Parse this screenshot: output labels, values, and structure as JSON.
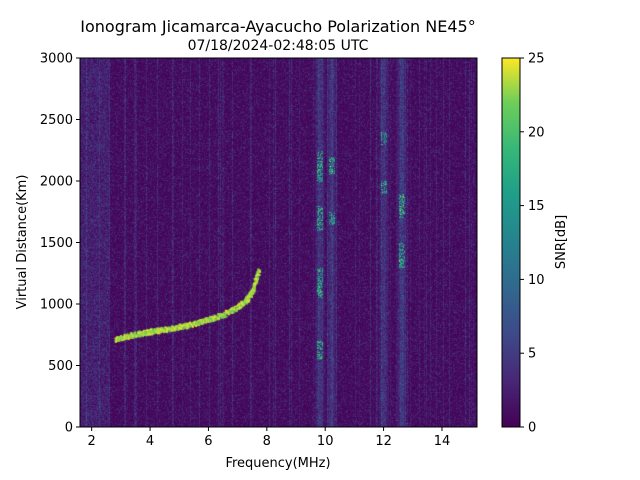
{
  "chart_data": {
    "type": "heatmap",
    "title": "Ionogram Jicamarca-Ayacucho Polarization NE45°",
    "subtitle": "07/18/2024-02:48:05 UTC",
    "xlabel": "Frequency(MHz)",
    "ylabel": "Virtual Distance(Km)",
    "xlim": [
      1.6,
      15.2
    ],
    "ylim": [
      0,
      3000
    ],
    "xticks": [
      2,
      4,
      6,
      8,
      10,
      12,
      14
    ],
    "yticks": [
      0,
      500,
      1000,
      1500,
      2000,
      2500,
      3000
    ],
    "grid": false,
    "colormap": "viridis",
    "colorbar": {
      "label": "SNR[dB]",
      "range": [
        0,
        25
      ],
      "ticks": [
        0,
        5,
        10,
        15,
        20,
        25
      ]
    },
    "trace": {
      "description_note": "",
      "frequency_mhz": [
        2.8,
        3.2,
        3.6,
        4.0,
        4.5,
        5.0,
        5.5,
        6.0,
        6.5,
        7.0,
        7.3,
        7.5,
        7.7
      ],
      "virtual_distance_km": [
        720,
        745,
        765,
        780,
        800,
        820,
        845,
        880,
        920,
        985,
        1040,
        1120,
        1280
      ]
    },
    "vertical_bands": [
      {
        "frequency_mhz": 9.8,
        "strong_ranges_km": [
          [
            550,
            700
          ],
          [
            1050,
            1300
          ],
          [
            1600,
            1800
          ],
          [
            2000,
            2250
          ]
        ]
      },
      {
        "frequency_mhz": 10.2,
        "strong_ranges_km": [
          [
            1650,
            1750
          ],
          [
            2050,
            2200
          ]
        ]
      },
      {
        "frequency_mhz": 12.0,
        "strong_ranges_km": [
          [
            1900,
            2000
          ],
          [
            2300,
            2400
          ]
        ]
      },
      {
        "frequency_mhz": 12.6,
        "strong_ranges_km": [
          [
            1300,
            1500
          ],
          [
            1700,
            1900
          ]
        ]
      }
    ]
  }
}
